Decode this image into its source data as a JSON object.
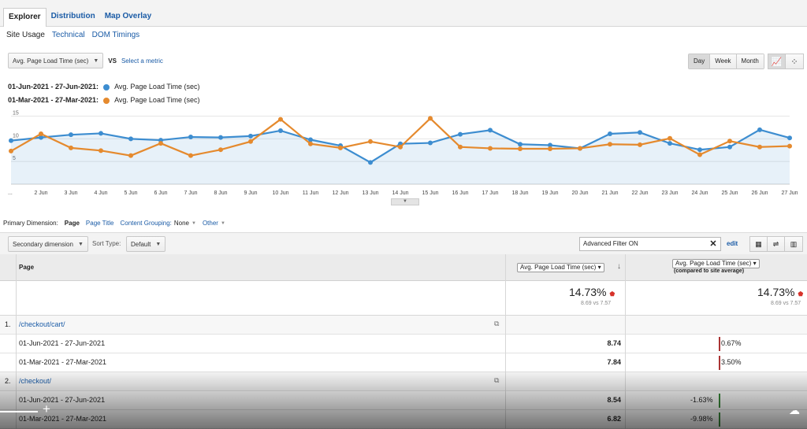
{
  "tabs": [
    "Explorer",
    "Distribution",
    "Map Overlay"
  ],
  "subtabs": [
    "Site Usage",
    "Technical",
    "DOM Timings"
  ],
  "metric": {
    "selected": "Avg. Page Load Time (sec)",
    "vs": "VS",
    "select_link": "Select a metric"
  },
  "range_buttons": [
    "Day",
    "Week",
    "Month"
  ],
  "legend": [
    {
      "range": "01-Jun-2021 - 27-Jun-2021:",
      "label": "Avg. Page Load Time (sec)",
      "color": "#3d8dd0"
    },
    {
      "range": "01-Mar-2021 - 27-Mar-2021:",
      "label": "Avg. Page Load Time (sec)",
      "color": "#e58a2e"
    }
  ],
  "chart_data": {
    "type": "line",
    "x": [
      "...",
      "2 Jun",
      "3 Jun",
      "4 Jun",
      "5 Jun",
      "6 Jun",
      "7 Jun",
      "8 Jun",
      "9 Jun",
      "10 Jun",
      "11 Jun",
      "12 Jun",
      "13 Jun",
      "14 Jun",
      "15 Jun",
      "16 Jun",
      "17 Jun",
      "18 Jun",
      "19 Jun",
      "20 Jun",
      "21 Jun",
      "22 Jun",
      "23 Jun",
      "24 Jun",
      "25 Jun",
      "26 Jun",
      "27 Jun"
    ],
    "yticks": [
      5,
      10,
      15
    ],
    "ylim": [
      0,
      17
    ],
    "series": [
      {
        "name": "01-Jun-2021 - 27-Jun-2021",
        "color": "#3d8dd0",
        "fill": true,
        "values": [
          9.6,
          10.3,
          10.9,
          11.2,
          10.0,
          9.7,
          10.4,
          10.3,
          10.6,
          11.8,
          9.8,
          8.5,
          4.8,
          8.9,
          9.1,
          11.0,
          11.9,
          8.8,
          8.6,
          7.9,
          11.1,
          11.4,
          9.0,
          7.6,
          8.2,
          12.0,
          10.2
        ]
      },
      {
        "name": "01-Mar-2021 - 27-Mar-2021",
        "color": "#e58a2e",
        "fill": false,
        "values": [
          7.3,
          11.1,
          8.0,
          7.4,
          6.3,
          9.0,
          6.3,
          7.6,
          9.4,
          14.3,
          8.9,
          8.0,
          9.4,
          8.2,
          14.5,
          8.2,
          7.9,
          7.8,
          7.8,
          7.9,
          8.8,
          8.7,
          10.1,
          6.5,
          9.5,
          8.2,
          8.4
        ]
      }
    ]
  },
  "dims": {
    "primary": "Primary Dimension:",
    "page": "Page",
    "page_title": "Page Title",
    "grouping": "Content Grouping:",
    "grouping_val": "None",
    "other": "Other"
  },
  "toolbar": {
    "secondary": "Secondary dimension",
    "sort_type": "Sort Type:",
    "sort_val": "Default",
    "filter": "Advanced Filter ON",
    "edit": "edit"
  },
  "table": {
    "col_page": "Page",
    "col_metric": "Avg. Page Load Time (sec)",
    "col_compare": "Avg. Page Load Time (sec)",
    "col_compare_note": "(compared to site average)",
    "total_pct": "14.73%",
    "total_sub": "8.69 vs 7.57",
    "total_pct2": "14.73%",
    "total_sub2": "8.69 vs 7.57",
    "rows": [
      {
        "num": "1.",
        "page": "/checkout/cart/",
        "r1": {
          "date": "01-Jun-2021 - 27-Jun-2021",
          "val": "8.74",
          "pct": "0.67%"
        },
        "r2": {
          "date": "01-Mar-2021 - 27-Mar-2021",
          "val": "7.84",
          "pct": "3.50%"
        }
      },
      {
        "num": "2.",
        "page": "/checkout/",
        "r1": {
          "date": "01-Jun-2021 - 27-Jun-2021",
          "val": "8.54",
          "pct": "-1.63%"
        },
        "r2": {
          "date": "01-Mar-2021 - 27-Mar-2021",
          "val": "6.82",
          "pct": "-9.98%"
        }
      }
    ]
  }
}
